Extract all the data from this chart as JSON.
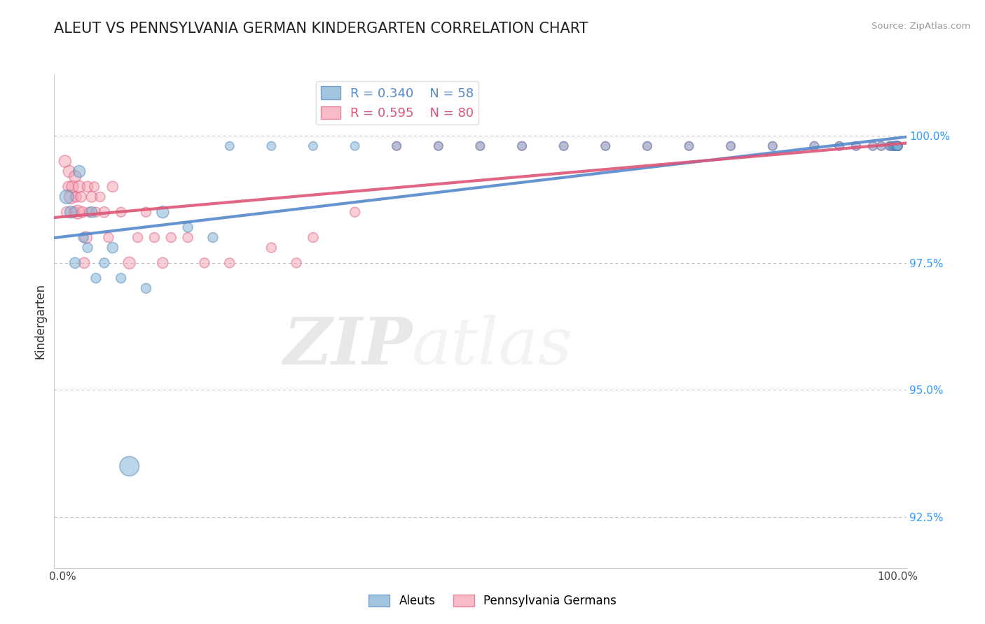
{
  "title": "ALEUT VS PENNSYLVANIA GERMAN KINDERGARTEN CORRELATION CHART",
  "source": "Source: ZipAtlas.com",
  "ylabel": "Kindergarten",
  "yticks": [
    92.5,
    95.0,
    97.5,
    100.0
  ],
  "ytick_labels": [
    "92.5%",
    "95.0%",
    "97.5%",
    "100.0%"
  ],
  "aleut_R": 0.34,
  "aleut_N": 58,
  "penn_R": 0.595,
  "penn_N": 80,
  "aleut_color": "#7BAFD4",
  "penn_color": "#F4A0B0",
  "aleut_edge_color": "#5588BB",
  "penn_edge_color": "#E06080",
  "aleut_line_color": "#5588CC",
  "penn_line_color": "#DD5577",
  "background_color": "#FFFFFF",
  "watermark_zip": "ZIP",
  "watermark_atlas": "atlas",
  "aleut_x": [
    0.5,
    1.0,
    1.5,
    2.0,
    2.5,
    3.0,
    3.5,
    4.0,
    5.0,
    6.0,
    7.0,
    8.0,
    10.0,
    12.0,
    15.0,
    18.0,
    20.0,
    25.0,
    30.0,
    35.0,
    40.0,
    45.0,
    50.0,
    55.0,
    60.0,
    65.0,
    70.0,
    75.0,
    80.0,
    85.0,
    90.0,
    93.0,
    95.0,
    97.0,
    98.0,
    99.0,
    99.2,
    99.4,
    99.5,
    99.6,
    99.7,
    99.75,
    99.8,
    99.82,
    99.84,
    99.86,
    99.88,
    99.9,
    99.91,
    99.92,
    99.93,
    99.94,
    99.95,
    99.96,
    99.97,
    99.98,
    99.99,
    100.0
  ],
  "aleut_y": [
    98.8,
    98.5,
    97.5,
    99.3,
    98.0,
    97.8,
    98.5,
    97.2,
    97.5,
    97.8,
    97.2,
    93.5,
    97.0,
    98.5,
    98.2,
    98.0,
    99.8,
    99.8,
    99.8,
    99.8,
    99.8,
    99.8,
    99.8,
    99.8,
    99.8,
    99.8,
    99.8,
    99.8,
    99.8,
    99.8,
    99.8,
    99.8,
    99.8,
    99.8,
    99.8,
    99.8,
    99.8,
    99.8,
    99.8,
    99.8,
    99.8,
    99.8,
    99.8,
    99.8,
    99.8,
    99.8,
    99.8,
    99.8,
    99.8,
    99.8,
    99.8,
    99.8,
    99.8,
    99.8,
    99.8,
    99.8,
    99.8,
    99.8
  ],
  "aleut_size": [
    200,
    150,
    120,
    150,
    100,
    100,
    120,
    100,
    100,
    120,
    100,
    400,
    100,
    150,
    100,
    100,
    80,
    80,
    80,
    80,
    80,
    80,
    80,
    80,
    80,
    80,
    80,
    80,
    80,
    80,
    80,
    80,
    80,
    80,
    80,
    80,
    80,
    80,
    80,
    80,
    80,
    80,
    80,
    80,
    80,
    80,
    80,
    80,
    80,
    80,
    80,
    80,
    80,
    80,
    80,
    80,
    80,
    80
  ],
  "penn_x": [
    0.3,
    0.5,
    0.7,
    0.8,
    1.0,
    1.2,
    1.4,
    1.5,
    1.6,
    1.8,
    2.0,
    2.2,
    2.4,
    2.6,
    2.8,
    3.0,
    3.2,
    3.5,
    3.8,
    4.0,
    4.5,
    5.0,
    5.5,
    6.0,
    7.0,
    8.0,
    9.0,
    10.0,
    11.0,
    12.0,
    13.0,
    15.0,
    17.0,
    20.0,
    25.0,
    28.0,
    30.0,
    35.0,
    40.0,
    45.0,
    50.0,
    55.0,
    60.0,
    65.0,
    70.0,
    75.0,
    80.0,
    85.0,
    90.0,
    93.0,
    95.0,
    97.0,
    98.0,
    99.0,
    99.3,
    99.5,
    99.6,
    99.7,
    99.75,
    99.8,
    99.82,
    99.84,
    99.86,
    99.88,
    99.9,
    99.91,
    99.92,
    99.93,
    99.94,
    99.95,
    99.96,
    99.97,
    99.98,
    99.99,
    99.995,
    99.998,
    99.999,
    100.0,
    100.0,
    100.0
  ],
  "penn_y": [
    99.5,
    98.5,
    99.0,
    99.3,
    98.8,
    99.0,
    98.5,
    99.2,
    98.8,
    98.5,
    99.0,
    98.8,
    98.5,
    97.5,
    98.0,
    99.0,
    98.5,
    98.8,
    99.0,
    98.5,
    98.8,
    98.5,
    98.0,
    99.0,
    98.5,
    97.5,
    98.0,
    98.5,
    98.0,
    97.5,
    98.0,
    98.0,
    97.5,
    97.5,
    97.8,
    97.5,
    98.0,
    98.5,
    99.8,
    99.8,
    99.8,
    99.8,
    99.8,
    99.8,
    99.8,
    99.8,
    99.8,
    99.8,
    99.8,
    99.8,
    99.8,
    99.8,
    99.8,
    99.8,
    99.8,
    99.8,
    99.8,
    99.8,
    99.8,
    99.8,
    99.8,
    99.8,
    99.8,
    99.8,
    99.8,
    99.8,
    99.8,
    99.8,
    99.8,
    99.8,
    99.8,
    99.8,
    99.8,
    99.8,
    99.8,
    99.8,
    99.8,
    99.8,
    99.8,
    99.8
  ],
  "penn_size": [
    150,
    120,
    120,
    150,
    200,
    150,
    120,
    150,
    120,
    200,
    150,
    120,
    120,
    120,
    150,
    120,
    100,
    120,
    100,
    100,
    100,
    120,
    100,
    120,
    100,
    150,
    100,
    100,
    100,
    120,
    100,
    100,
    100,
    100,
    100,
    100,
    100,
    100,
    80,
    80,
    80,
    80,
    80,
    80,
    80,
    80,
    80,
    80,
    80,
    80,
    80,
    80,
    80,
    80,
    80,
    80,
    80,
    80,
    80,
    80,
    80,
    80,
    80,
    80,
    80,
    80,
    80,
    80,
    80,
    80,
    80,
    80,
    80,
    80,
    80,
    80,
    80,
    80,
    80,
    80
  ]
}
